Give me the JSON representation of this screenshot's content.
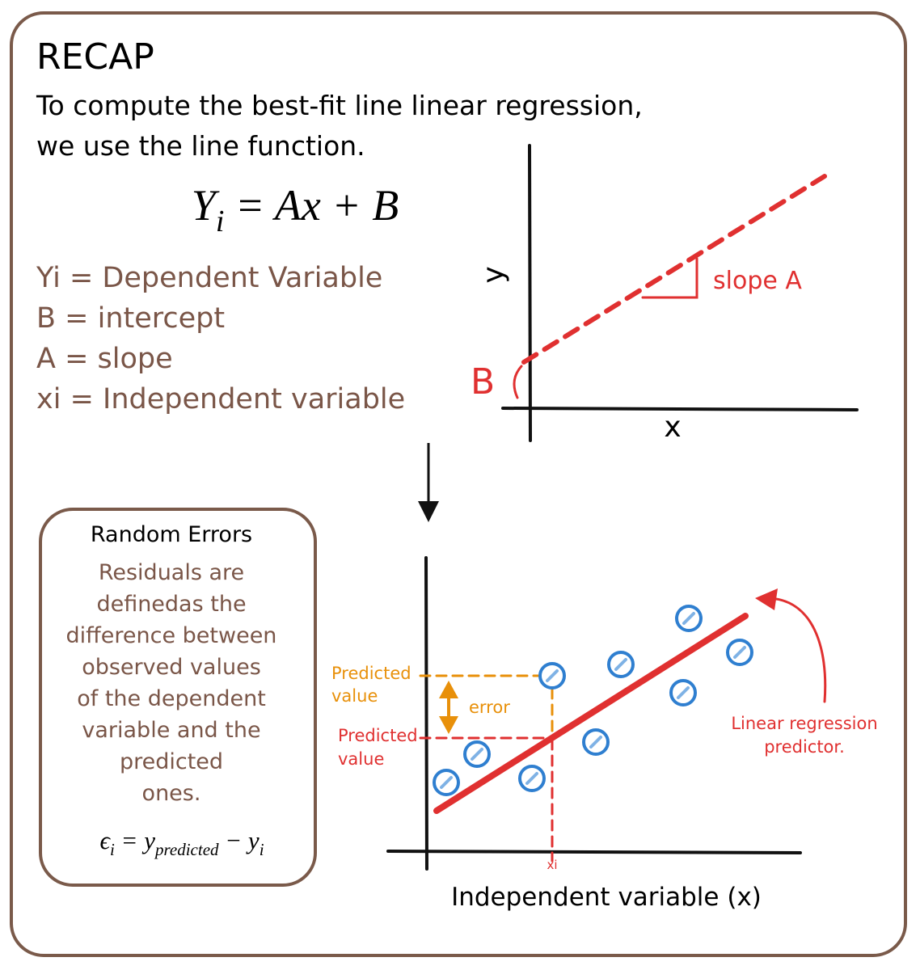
{
  "title": "RECAP",
  "intro": [
    "To compute the best-fit line linear regression,",
    "we use the line function."
  ],
  "formula": {
    "base": "Y",
    "sub": "i",
    "rest": " = Ax + B"
  },
  "definitions": [
    "Yi = Dependent Variable",
    "B = intercept",
    "A = slope",
    "xi = Independent variable"
  ],
  "top_chart": {
    "y_label": "y",
    "x_label": "x",
    "slope_label": "slope A",
    "intercept_label": "B"
  },
  "errors_box": {
    "title": "Random Errors",
    "lines": [
      "Residuals are",
      "definedas the",
      "difference between",
      "observed values",
      "of the dependent",
      "variable and the",
      "predicted",
      "ones."
    ],
    "formula": {
      "eps": "ϵ",
      "eps_sub": "i",
      "mid": " = y",
      "mid_sub": "predicted",
      "end": " − y",
      "end_sub": "i"
    }
  },
  "bottom_chart": {
    "observed_label": [
      "Predicted",
      "value"
    ],
    "error_label": "error",
    "predicted_label": [
      "Predicted",
      "value"
    ],
    "xi_label": "xi",
    "predictor_label": [
      "Linear regression",
      "predictor."
    ],
    "x_label": "Independent variable (x)"
  }
}
